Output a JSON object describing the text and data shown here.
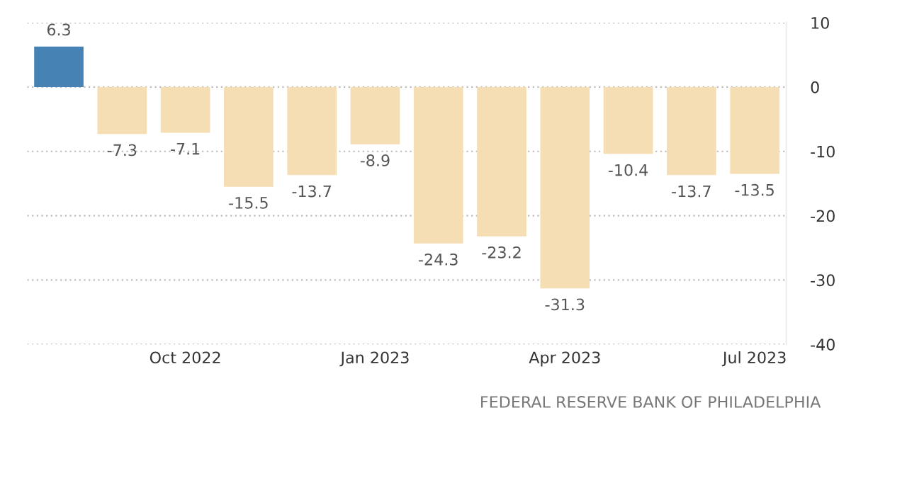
{
  "chart_data": {
    "type": "bar",
    "categories": [
      null,
      null,
      "Oct 2022",
      null,
      null,
      "Jan 2023",
      null,
      null,
      "Apr 2023",
      null,
      null,
      "Jul 2023"
    ],
    "values": [
      6.3,
      -7.3,
      -7.1,
      -15.5,
      -13.7,
      -8.9,
      -24.3,
      -23.2,
      -31.3,
      -10.4,
      -13.7,
      -13.5
    ],
    "colors": [
      "#4682b4",
      "#f5deb3",
      "#f5deb3",
      "#f5deb3",
      "#f5deb3",
      "#f5deb3",
      "#f5deb3",
      "#f5deb3",
      "#f5deb3",
      "#f5deb3",
      "#f5deb3",
      "#f5deb3"
    ],
    "ylim": [
      -40,
      10
    ],
    "yticks": [
      -40,
      -30,
      -20,
      -10,
      0,
      10
    ],
    "grid": "y",
    "data_labels": true,
    "annotations": [
      "FEDERAL RESERVE BANK OF PHILADELPHIA"
    ]
  }
}
